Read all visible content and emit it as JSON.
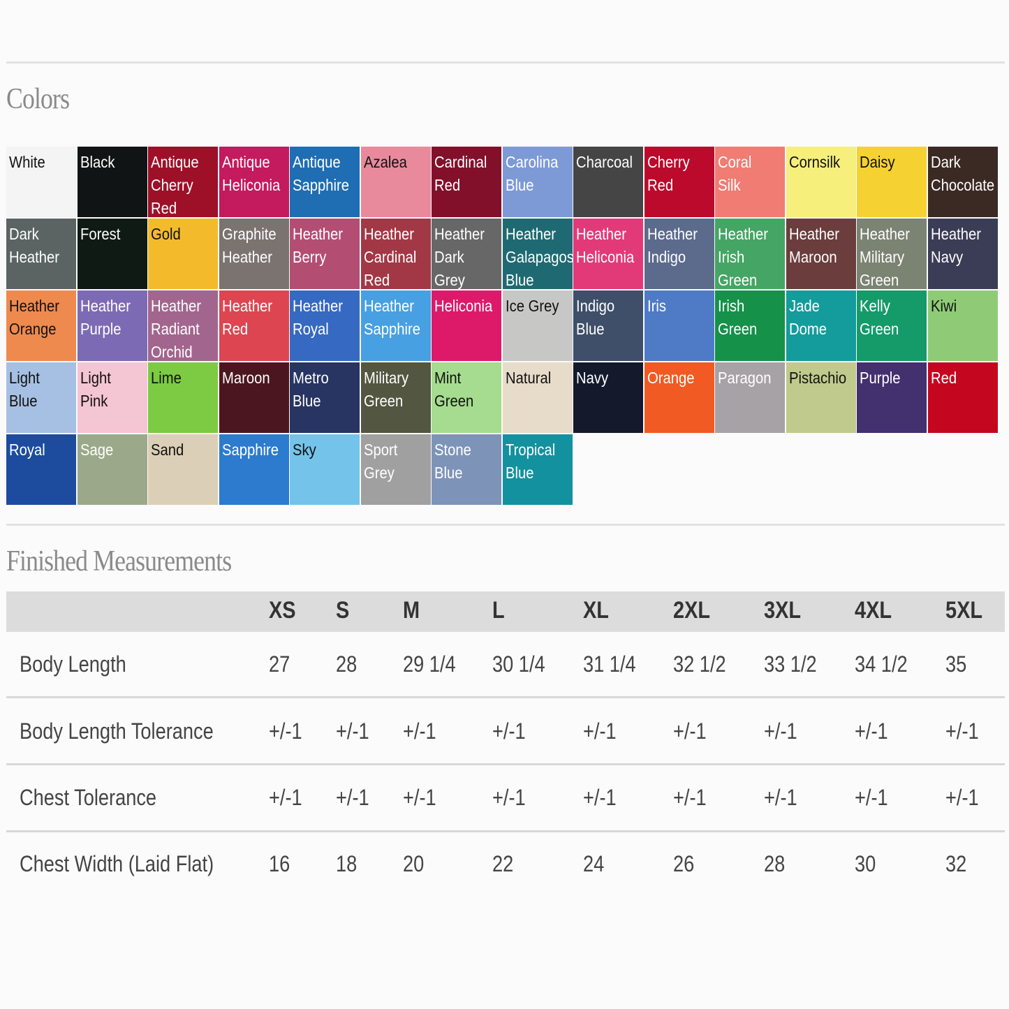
{
  "colors_title": "Colors",
  "swatches": [
    {
      "name": "White",
      "bg": "#f4f4f4",
      "fg": "#111"
    },
    {
      "name": "Black",
      "bg": "#111414",
      "fg": "#fff"
    },
    {
      "name": "Antique\nCherry\nRed",
      "bg": "#9e1028",
      "fg": "#fff"
    },
    {
      "name": "Antique\nHeliconia",
      "bg": "#c41a5e",
      "fg": "#fff"
    },
    {
      "name": "Antique\nSapphire",
      "bg": "#1f6db3",
      "fg": "#fff"
    },
    {
      "name": "Azalea",
      "bg": "#e88a9c",
      "fg": "#111"
    },
    {
      "name": "Cardinal\nRed",
      "bg": "#82102a",
      "fg": "#fff"
    },
    {
      "name": "Carolina\nBlue",
      "bg": "#7d9ad6",
      "fg": "#fff"
    },
    {
      "name": "Charcoal",
      "bg": "#464545",
      "fg": "#fff"
    },
    {
      "name": "Cherry\nRed",
      "bg": "#bb0a2c",
      "fg": "#fff"
    },
    {
      "name": "Coral Silk",
      "bg": "#f07c74",
      "fg": "#fff"
    },
    {
      "name": "Cornsilk",
      "bg": "#f6ef7c",
      "fg": "#111"
    },
    {
      "name": "Daisy",
      "bg": "#f6d132",
      "fg": "#111"
    },
    {
      "name": "Dark\nChocolate",
      "bg": "#3b2a24",
      "fg": "#fff"
    },
    {
      "name": "Dark\nHeather",
      "bg": "#5b6463",
      "fg": "#fff"
    },
    {
      "name": "Forest",
      "bg": "#101a14",
      "fg": "#fff"
    },
    {
      "name": "Gold",
      "bg": "#f3bb2b",
      "fg": "#111"
    },
    {
      "name": "Graphite\nHeather",
      "bg": "#7a7370",
      "fg": "#fff"
    },
    {
      "name": "Heather\nBerry",
      "bg": "#b44d72",
      "fg": "#fff"
    },
    {
      "name": "Heather\nCardinal\nRed",
      "bg": "#a23846",
      "fg": "#fff"
    },
    {
      "name": "Heather\nDark Grey",
      "bg": "#676767",
      "fg": "#fff"
    },
    {
      "name": "Heather\nGalapagos\nBlue",
      "bg": "#1f6a72",
      "fg": "#fff"
    },
    {
      "name": "Heather\nHeliconia",
      "bg": "#e23a79",
      "fg": "#fff"
    },
    {
      "name": "Heather\nIndigo",
      "bg": "#5c6b8c",
      "fg": "#fff"
    },
    {
      "name": "Heather\nIrish\nGreen",
      "bg": "#45a564",
      "fg": "#fff"
    },
    {
      "name": "Heather\nMaroon",
      "bg": "#6b3d3c",
      "fg": "#fff"
    },
    {
      "name": "Heather\nMilitary\nGreen",
      "bg": "#7b8373",
      "fg": "#fff"
    },
    {
      "name": "Heather\nNavy",
      "bg": "#3a3d55",
      "fg": "#fff"
    },
    {
      "name": "Heather\nOrange",
      "bg": "#ee8a4e",
      "fg": "#111"
    },
    {
      "name": "Heather\nPurple",
      "bg": "#7d6ab4",
      "fg": "#fff"
    },
    {
      "name": "Heather\nRadiant\nOrchid",
      "bg": "#a2668e",
      "fg": "#fff"
    },
    {
      "name": "Heather\nRed",
      "bg": "#dd4651",
      "fg": "#fff"
    },
    {
      "name": "Heather\nRoyal",
      "bg": "#3669c2",
      "fg": "#fff"
    },
    {
      "name": "Heather\nSapphire",
      "bg": "#47a0e2",
      "fg": "#fff"
    },
    {
      "name": "Heliconia",
      "bg": "#dd1a6a",
      "fg": "#fff"
    },
    {
      "name": "Ice Grey",
      "bg": "#c7c7c5",
      "fg": "#111"
    },
    {
      "name": "Indigo\nBlue",
      "bg": "#3f4f6a",
      "fg": "#fff"
    },
    {
      "name": "Iris",
      "bg": "#4f7ac6",
      "fg": "#fff"
    },
    {
      "name": "Irish\nGreen",
      "bg": "#15914a",
      "fg": "#fff"
    },
    {
      "name": "Jade\nDome",
      "bg": "#139c9b",
      "fg": "#fff"
    },
    {
      "name": "Kelly\nGreen",
      "bg": "#159a6a",
      "fg": "#fff"
    },
    {
      "name": "Kiwi",
      "bg": "#8fcb76",
      "fg": "#111"
    },
    {
      "name": "Light Blue",
      "bg": "#a6c0e3",
      "fg": "#111"
    },
    {
      "name": "Light Pink",
      "bg": "#f4c5d2",
      "fg": "#111"
    },
    {
      "name": "Lime",
      "bg": "#7ccb43",
      "fg": "#111"
    },
    {
      "name": "Maroon",
      "bg": "#4c1620",
      "fg": "#fff"
    },
    {
      "name": "Metro\nBlue",
      "bg": "#283461",
      "fg": "#fff"
    },
    {
      "name": "Military\nGreen",
      "bg": "#535640",
      "fg": "#fff"
    },
    {
      "name": "Mint\nGreen",
      "bg": "#a5dc8f",
      "fg": "#111"
    },
    {
      "name": "Natural",
      "bg": "#e6dcc9",
      "fg": "#111"
    },
    {
      "name": "Navy",
      "bg": "#141a2c",
      "fg": "#fff"
    },
    {
      "name": "Orange",
      "bg": "#f15a22",
      "fg": "#fff"
    },
    {
      "name": "Paragon",
      "bg": "#a7a2a6",
      "fg": "#fff"
    },
    {
      "name": "Pistachio",
      "bg": "#bfca8c",
      "fg": "#111"
    },
    {
      "name": "Purple",
      "bg": "#43306f",
      "fg": "#fff"
    },
    {
      "name": "Red",
      "bg": "#c4071f",
      "fg": "#fff"
    },
    {
      "name": "Royal",
      "bg": "#1d4c9e",
      "fg": "#fff"
    },
    {
      "name": "Sage",
      "bg": "#9ba98a",
      "fg": "#fff"
    },
    {
      "name": "Sand",
      "bg": "#dccfb7",
      "fg": "#111"
    },
    {
      "name": "Sapphire",
      "bg": "#2c7bce",
      "fg": "#fff"
    },
    {
      "name": "Sky",
      "bg": "#74c3ea",
      "fg": "#111"
    },
    {
      "name": "Sport\nGrey",
      "bg": "#a0a0a0",
      "fg": "#fff"
    },
    {
      "name": "Stone\nBlue",
      "bg": "#7e93b8",
      "fg": "#fff"
    },
    {
      "name": "Tropical\nBlue",
      "bg": "#14919e",
      "fg": "#fff"
    }
  ],
  "measurements_title": "Finished Measurements",
  "sizes": [
    "XS",
    "S",
    "M",
    "L",
    "XL",
    "2XL",
    "3XL",
    "4XL",
    "5XL"
  ],
  "rows": [
    {
      "label": "Body Length",
      "values": [
        "27",
        "28",
        "29 1/4",
        "30 1/4",
        "31 1/4",
        "32 1/2",
        "33 1/2",
        "34 1/2",
        "35"
      ]
    },
    {
      "label": "Body Length Tolerance",
      "values": [
        "+/-1",
        "+/-1",
        "+/-1",
        "+/-1",
        "+/-1",
        "+/-1",
        "+/-1",
        "+/-1",
        "+/-1"
      ]
    },
    {
      "label": "Chest Tolerance",
      "values": [
        "+/-1",
        "+/-1",
        "+/-1",
        "+/-1",
        "+/-1",
        "+/-1",
        "+/-1",
        "+/-1",
        "+/-1"
      ]
    },
    {
      "label": "Chest Width (Laid Flat)",
      "values": [
        "16",
        "18",
        "20",
        "22",
        "24",
        "26",
        "28",
        "30",
        "32"
      ]
    }
  ]
}
